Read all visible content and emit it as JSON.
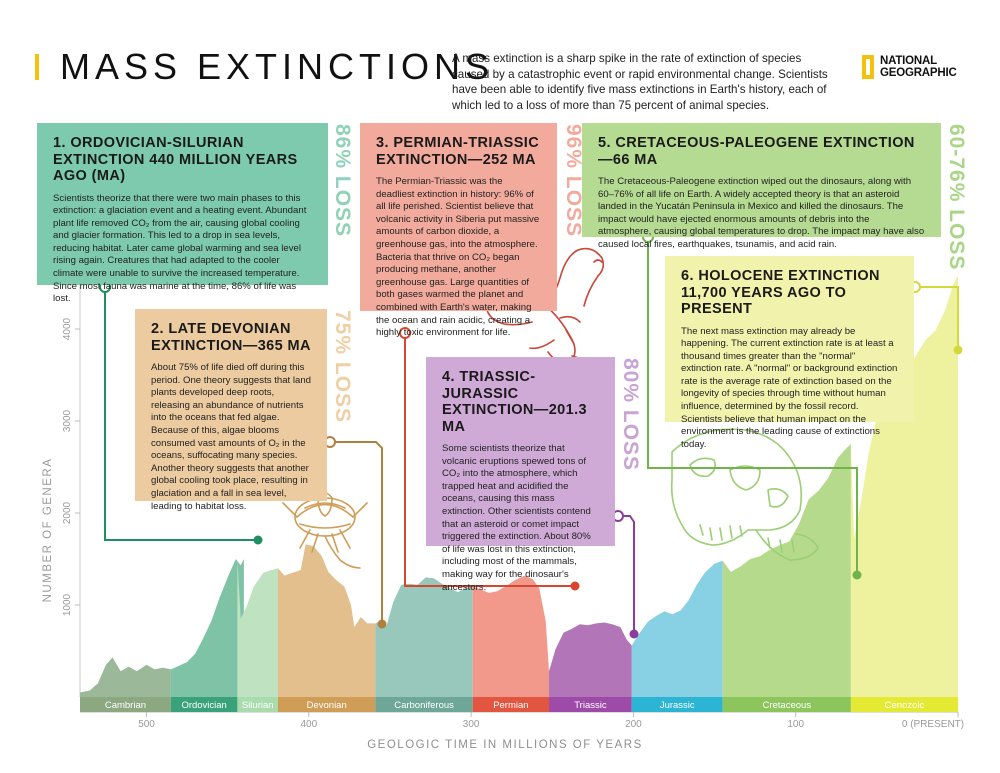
{
  "header": {
    "title": "MASS EXTINCTIONS",
    "intro": "A mass extinction is a sharp spike in the rate of extinction of species caused by a catastrophic event or rapid environmental change. Scientists have been able to identify five mass extinctions in Earth's history, each of which led to a loss of more than 75 percent of animal species.",
    "logo_line1": "NATIONAL",
    "logo_line2": "GEOGRAPHIC"
  },
  "cards": [
    {
      "title": "1. ORDOVICIAN-SILURIAN EXTINCTION 440 MILLION YEARS AGO (MA)",
      "text": "Scientists theorize that there were two main phases to this extinction: a glaciation event and a heating event. Abundant plant life removed CO₂ from the air, causing global cooling and glacier formation. This led to a drop in sea levels, reducing habitat. Later came global warming and sea level rising again. Creatures that had adapted to the cooler climate were unable to survive the increased temperature. Since most fauna was marine at the time, 86% of life was lost.",
      "loss": "86% LOSS",
      "color": "#7dcaae",
      "loss_color": "#8fd2b9"
    },
    {
      "title": "2. LATE DEVONIAN EXTINCTION—365 MA",
      "text": "About 75% of life died off during this period. One theory suggests that land plants developed deep roots, releasing an abundance of nutrients into the oceans that fed algae. Because of this, algae blooms consumed vast amounts of O₂ in the oceans, suffocating many species. Another theory suggests that another global cooling took place, resulting in glaciation and a fall in sea level, leading to habitat loss.",
      "loss": "75% LOSS",
      "color": "#eccba0",
      "loss_color": "#efcfa3"
    },
    {
      "title": "3. PERMIAN-TRIASSIC EXTINCTION—252 MA",
      "text": "The Permian-Triassic was the deadliest extinction in history: 96% of all life perished. Scientist believe that volcanic activity in Siberia put massive amounts of carbon dioxide, a greenhouse gas, into the atmosphere. Bacteria that thrive on CO₂ began producing methane, another greenhouse gas. Large quantities of both gases warmed the planet and combined with Earth's water, making the ocean and rain acidic, creating a highly toxic environment for life.",
      "loss": "96% LOSS",
      "color": "#f2aa9c",
      "loss_color": "#f2aa9c"
    },
    {
      "title": "4. TRIASSIC-JURASSIC EXTINCTION—201.3 MA",
      "text": "Some scientists theorize that volcanic eruptions spewed tons of CO₂ into the atmosphere, which trapped heat and acidified the oceans, causing this mass extinction. Other scientists contend that an asteroid or comet impact triggered the extinction. About 80% of life was lost in this extinction, including most of the mammals, making way for the dinosaur's ancestors.",
      "loss": "80% LOSS",
      "color": "#cfaad6",
      "loss_color": "#c9a3d3"
    },
    {
      "title": "5. CRETACEOUS-PALEOGENE EXTINCTION—66 MA",
      "text": "The Cretaceous-Paleogene extinction wiped out the dinosaurs, along with 60–76% of all life on Earth. A widely accepted theory is that an asteroid landed in the Yucatán Peninsula in Mexico and killed the dinosaurs. The impact would have ejected enormous amounts of debris into the atmosphere, causing global temperatures to drop. The impact may have also caused local fires, earthquakes, tsunamis, and acid rain.",
      "loss": "60-76% LOSS",
      "color": "#b5da91",
      "loss_color": "#a9d686"
    },
    {
      "title": "6. HOLOCENE EXTINCTION 11,700 YEARS AGO TO PRESENT",
      "text": "The next mass extinction may already be happening. The current extinction rate is at least a thousand times greater than the \"normal\" extinction rate. A \"normal\" or background extinction rate is the average rate of extinction based on the longevity of species through time without human influence, determined by the fossil record. Scientists believe that human impact on the environment is the leading cause of extinctions today.",
      "loss": "",
      "color": "#f1f3ad",
      "loss_color": "#f1f3ad"
    }
  ],
  "chart_data": {
    "type": "area",
    "xlabel": "GEOLOGIC TIME IN MILLIONS OF YEARS",
    "ylabel": "NUMBER OF GENERA",
    "xlim": [
      541,
      0
    ],
    "ylim": [
      0,
      5000
    ],
    "x_ticks": [
      500,
      400,
      300,
      200,
      100,
      0
    ],
    "x_tick_labels": [
      "500",
      "400",
      "300",
      "200",
      "100",
      "0 (PRESENT)"
    ],
    "y_ticks": [
      1000,
      2000,
      3000,
      4000
    ],
    "periods": [
      {
        "name": "Cambrian",
        "start": 541,
        "end": 485,
        "color": "#9bb998",
        "band": "#8ba880",
        "points": [
          [
            541,
            50
          ],
          [
            535,
            70
          ],
          [
            530,
            150
          ],
          [
            525,
            350
          ],
          [
            521,
            430
          ],
          [
            516,
            280
          ],
          [
            511,
            330
          ],
          [
            506,
            280
          ],
          [
            500,
            350
          ],
          [
            495,
            300
          ],
          [
            490,
            320
          ],
          [
            485,
            300
          ]
        ]
      },
      {
        "name": "Ordovician",
        "start": 485,
        "end": 444,
        "color": "#7fc3a7",
        "band": "#39a27a",
        "points": [
          [
            485,
            300
          ],
          [
            480,
            340
          ],
          [
            475,
            380
          ],
          [
            470,
            470
          ],
          [
            465,
            640
          ],
          [
            460,
            830
          ],
          [
            455,
            1080
          ],
          [
            450,
            1300
          ],
          [
            445,
            1500
          ],
          [
            442,
            1430
          ],
          [
            440,
            1500
          ]
        ]
      },
      {
        "name": "Silurian",
        "start": 444,
        "end": 419,
        "color": "#bfe2c1",
        "band": "#a9dbad",
        "points": [
          [
            444,
            1500
          ],
          [
            442,
            850
          ],
          [
            438,
            1000
          ],
          [
            434,
            1200
          ],
          [
            428,
            1350
          ],
          [
            423,
            1380
          ],
          [
            419,
            1400
          ]
        ]
      },
      {
        "name": "Devonian",
        "start": 419,
        "end": 359,
        "color": "#e4bf8e",
        "band": "#cf9d56",
        "points": [
          [
            419,
            1400
          ],
          [
            415,
            1320
          ],
          [
            410,
            1350
          ],
          [
            405,
            1380
          ],
          [
            402,
            1660
          ],
          [
            397,
            1640
          ],
          [
            392,
            1530
          ],
          [
            388,
            1360
          ],
          [
            383,
            1270
          ],
          [
            378,
            1200
          ],
          [
            374,
            1000
          ],
          [
            372,
            760
          ],
          [
            368,
            870
          ],
          [
            364,
            800
          ],
          [
            359,
            800
          ]
        ]
      },
      {
        "name": "Carboniferous",
        "start": 359,
        "end": 299,
        "color": "#98c8bc",
        "band": "#6ea698",
        "points": [
          [
            359,
            800
          ],
          [
            355,
            830
          ],
          [
            352,
            780
          ],
          [
            348,
            1030
          ],
          [
            343,
            1220
          ],
          [
            338,
            1230
          ],
          [
            333,
            1220
          ],
          [
            328,
            1300
          ],
          [
            323,
            1290
          ],
          [
            318,
            1230
          ],
          [
            313,
            1180
          ],
          [
            308,
            1140
          ],
          [
            303,
            1190
          ],
          [
            299,
            1200
          ]
        ]
      },
      {
        "name": "Permian",
        "start": 299,
        "end": 252,
        "color": "#f2998c",
        "band": "#e2553f",
        "points": [
          [
            299,
            1200
          ],
          [
            294,
            1170
          ],
          [
            289,
            1130
          ],
          [
            284,
            1150
          ],
          [
            279,
            1200
          ],
          [
            273,
            1270
          ],
          [
            267,
            1320
          ],
          [
            262,
            1280
          ],
          [
            258,
            1180
          ],
          [
            254,
            820
          ],
          [
            252,
            280
          ]
        ]
      },
      {
        "name": "Triassic",
        "start": 252,
        "end": 201,
        "color": "#b175b8",
        "band": "#9d4aa8",
        "points": [
          [
            252,
            280
          ],
          [
            248,
            520
          ],
          [
            243,
            700
          ],
          [
            238,
            740
          ],
          [
            233,
            790
          ],
          [
            228,
            780
          ],
          [
            223,
            800
          ],
          [
            218,
            810
          ],
          [
            213,
            790
          ],
          [
            208,
            760
          ],
          [
            204,
            620
          ],
          [
            201,
            560
          ]
        ]
      },
      {
        "name": "Jurassic",
        "start": 201,
        "end": 145,
        "color": "#88d0e3",
        "band": "#2bb4d4",
        "points": [
          [
            201,
            560
          ],
          [
            196,
            700
          ],
          [
            191,
            820
          ],
          [
            186,
            880
          ],
          [
            181,
            930
          ],
          [
            176,
            900
          ],
          [
            171,
            940
          ],
          [
            166,
            1050
          ],
          [
            161,
            1220
          ],
          [
            156,
            1350
          ],
          [
            150,
            1450
          ],
          [
            145,
            1480
          ]
        ]
      },
      {
        "name": "Cretaceous",
        "start": 145,
        "end": 66,
        "color": "#b6da8c",
        "band": "#8cc55c",
        "points": [
          [
            145,
            1480
          ],
          [
            140,
            1360
          ],
          [
            134,
            1420
          ],
          [
            128,
            1500
          ],
          [
            122,
            1530
          ],
          [
            116,
            1600
          ],
          [
            110,
            1650
          ],
          [
            104,
            1690
          ],
          [
            98,
            1880
          ],
          [
            92,
            2150
          ],
          [
            86,
            2240
          ],
          [
            80,
            2380
          ],
          [
            74,
            2600
          ],
          [
            69,
            2700
          ],
          [
            66,
            2750
          ]
        ]
      },
      {
        "name": "Cenozoic",
        "start": 66,
        "end": 0,
        "color": "#eef29e",
        "band": "#e4ea34",
        "points": [
          [
            66,
            2750
          ],
          [
            64,
            1720
          ],
          [
            60,
            2100
          ],
          [
            55,
            2650
          ],
          [
            50,
            3050
          ],
          [
            45,
            3300
          ],
          [
            40,
            3520
          ],
          [
            33,
            3480
          ],
          [
            27,
            3680
          ],
          [
            20,
            3880
          ],
          [
            14,
            3980
          ],
          [
            8,
            4200
          ],
          [
            3,
            4480
          ],
          [
            0,
            4580
          ]
        ]
      }
    ],
    "markers": [
      {
        "x": 440,
        "y": 1500,
        "color": "#1e8f5f"
      },
      {
        "x": 359,
        "y": 800,
        "color": "#b0803e"
      },
      {
        "x": 252,
        "y": 1180,
        "color": "#d9462f"
      },
      {
        "x": 201,
        "y": 800,
        "color": "#8e3c9c"
      },
      {
        "x": 66,
        "y": 1720,
        "color": "#6fb34a"
      },
      {
        "x": 0,
        "y": 4580,
        "color": "#d4d83a"
      }
    ]
  }
}
